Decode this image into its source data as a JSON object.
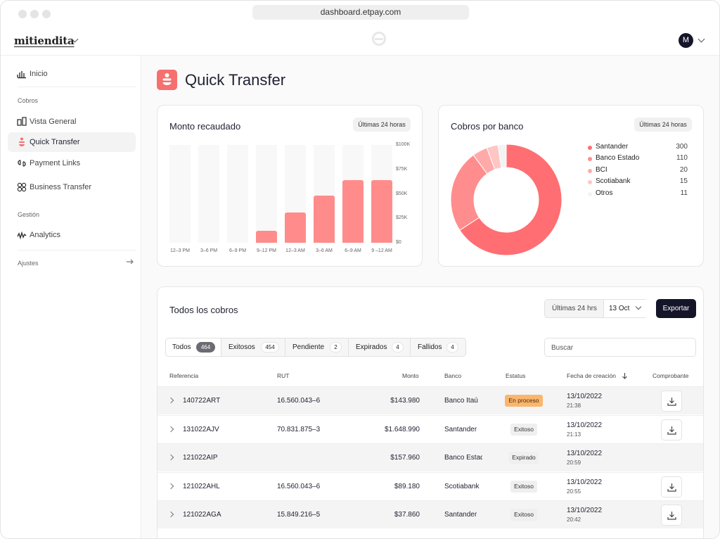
{
  "browser": {
    "url": "dashboard.etpay.com"
  },
  "header": {
    "brand": "mitiendita",
    "user_initial": "M"
  },
  "sidebar": {
    "home": "Inicio",
    "section_cobros": "Cobros",
    "items_cobros": [
      "Vista General",
      "Quick Transfer",
      "Payment Links",
      "Business Transfer"
    ],
    "section_gestion": "Gestión",
    "analytics": "Analytics",
    "ajustes": "Ajustes"
  },
  "page": {
    "title": "Quick Transfer"
  },
  "monto": {
    "title": "Monto recaudado",
    "range": "Últimas 24 horas",
    "chart_data": {
      "type": "bar",
      "title": "Monto recaudado",
      "categories": [
        "12–3 PM",
        "3–6 PM",
        "6–9 PM",
        "9–12 PM",
        "12–3 AM",
        "3–6 AM",
        "6–9 AM",
        "9 –12 AM"
      ],
      "values": [
        0,
        0,
        0,
        12000,
        31000,
        48000,
        64000,
        64000
      ],
      "yticks": [
        "$100K",
        "$75K",
        "$50K",
        "$25K",
        "$0"
      ],
      "ylim": [
        0,
        100000
      ]
    }
  },
  "bancos": {
    "title": "Cobros por banco",
    "range": "Últimas 24 horas",
    "chart_data": {
      "type": "pie",
      "title": "Cobros por banco",
      "labels": [
        "Santander",
        "Banco Estado",
        "BCI",
        "Scotiabank",
        "Otros"
      ],
      "values": [
        300,
        110,
        20,
        15,
        11
      ],
      "colors": [
        "#ff6e72",
        "#ff8d8e",
        "#ffaaa9",
        "#ffc6c4",
        "#f3f3f3"
      ]
    }
  },
  "cobros": {
    "title": "Todos los cobros",
    "filter_range": "Últimas 24 hrs",
    "filter_date": "13 Oct",
    "export": "Exportar",
    "search_placeholder": "Buscar",
    "tabs": [
      {
        "label": "Todos",
        "count": "464"
      },
      {
        "label": "Exitosos",
        "count": "454"
      },
      {
        "label": "Pendiente",
        "count": "2"
      },
      {
        "label": "Expirados",
        "count": "4"
      },
      {
        "label": "Fallidos",
        "count": "4"
      }
    ],
    "columns": [
      "Referencia",
      "RUT",
      "Monto",
      "Banco",
      "Estatus",
      "Fecha de creación",
      "Comprobante"
    ],
    "rows": [
      {
        "ref": "140722ART",
        "rut": "16.560.043–6",
        "monto": "$143.980",
        "banco": "Banco Itaú",
        "status": "En proceso",
        "date": "13/10/2022",
        "time": "21:38"
      },
      {
        "ref": "131022AJV",
        "rut": "70.831.875–3",
        "monto": "$1.648.990",
        "banco": "Santander",
        "status": "Exitoso",
        "date": "13/10/2022",
        "time": "21:13"
      },
      {
        "ref": "121022AIP",
        "rut": "",
        "monto": "$157.960",
        "banco": "Banco Estado",
        "status": "Expirado",
        "date": "13/10/2022",
        "time": "20:59"
      },
      {
        "ref": "121022AHL",
        "rut": "16.560.043–6",
        "monto": "$89.180",
        "banco": "Scotiabank",
        "status": "Exitoso",
        "date": "13/10/2022",
        "time": "20:55"
      },
      {
        "ref": "121022AGA",
        "rut": "15.849.216–5",
        "monto": "$37.860",
        "banco": "Santander",
        "status": "Exitoso",
        "date": "13/10/2022",
        "time": "20:42"
      }
    ]
  }
}
